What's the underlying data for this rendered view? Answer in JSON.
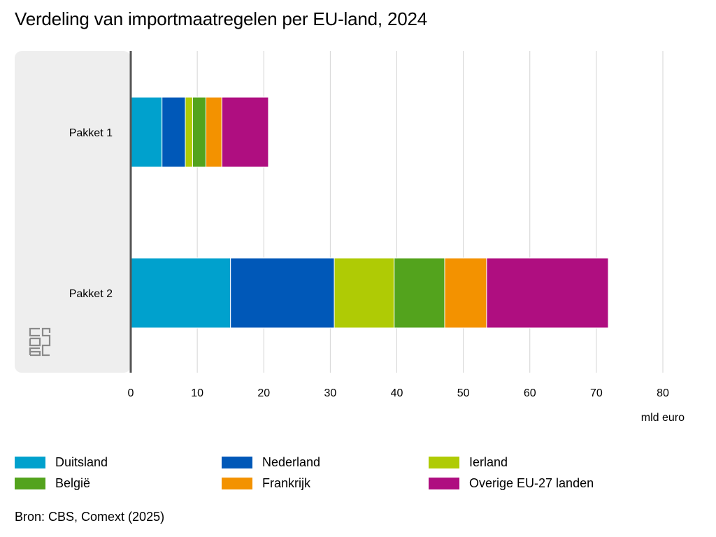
{
  "chart_data": {
    "type": "bar",
    "orientation": "horizontal",
    "stacked": true,
    "title": "Verdeling van importmaatregelen per EU-land, 2024",
    "categories": [
      "Pakket 1",
      "Pakket 2"
    ],
    "series": [
      {
        "name": "Duitsland",
        "color": "#00a1cd",
        "values": [
          4.7,
          15.0
        ]
      },
      {
        "name": "Nederland",
        "color": "#0058b8",
        "values": [
          3.5,
          15.6
        ]
      },
      {
        "name": "Ierland",
        "color": "#afcb05",
        "values": [
          1.1,
          9.0
        ]
      },
      {
        "name": "België",
        "color": "#53a31d",
        "values": [
          2.0,
          7.6
        ]
      },
      {
        "name": "Frankrijk",
        "color": "#f39200",
        "values": [
          2.4,
          6.3
        ]
      },
      {
        "name": "Overige EU-27 landen",
        "color": "#af0e80",
        "values": [
          7.0,
          18.3
        ]
      }
    ],
    "xlim": [
      0,
      80
    ],
    "xticks": [
      "0",
      "10",
      "20",
      "30",
      "40",
      "50",
      "60",
      "70",
      "80"
    ],
    "xticks_values": [
      0,
      10,
      20,
      30,
      40,
      50,
      60,
      70,
      80
    ],
    "xlabel": "mld euro",
    "grid": true,
    "legend_position": "bottom"
  },
  "source": "Bron: CBS, Comext (2025)",
  "logo": "cbs-logo",
  "colors": {
    "panel_background": "#eeeeee",
    "gridline": "#d4d4d4",
    "axis": "#555555"
  }
}
